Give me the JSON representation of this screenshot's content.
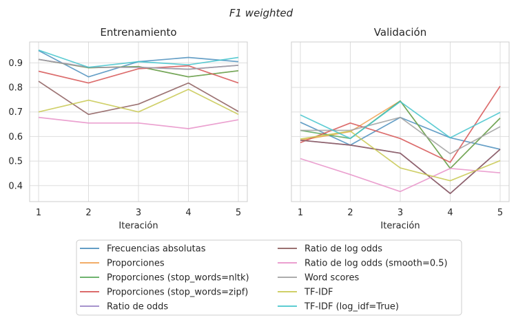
{
  "figure": {
    "suptitle": "F1 weighted"
  },
  "chart_data": [
    {
      "type": "line",
      "title": "Entrenamiento",
      "xlabel": "Iteración",
      "ylabel": "",
      "x": [
        1,
        2,
        3,
        4,
        5
      ],
      "xticks": [
        "1",
        "2",
        "3",
        "4",
        "5"
      ],
      "yticks": [
        "0.4",
        "0.5",
        "0.6",
        "0.7",
        "0.8",
        "0.9"
      ],
      "ylim": [
        0.335,
        0.985
      ],
      "grid": true,
      "series": [
        {
          "name": "Frecuencias absolutas",
          "values": [
            0.95,
            0.843,
            0.905,
            0.922,
            0.905
          ]
        },
        {
          "name": "Proporciones",
          "values": [
            0.914,
            0.88,
            0.885,
            0.843,
            0.868
          ]
        },
        {
          "name": "Proporciones (stop_words=nltk)",
          "values": [
            0.914,
            0.88,
            0.885,
            0.843,
            0.868
          ]
        },
        {
          "name": "Proporciones (stop_words=zipf)",
          "values": [
            0.866,
            0.818,
            0.876,
            0.888,
            0.818
          ]
        },
        {
          "name": "Ratio de odds",
          "values": [
            0.914,
            0.882,
            0.882,
            0.874,
            0.89
          ]
        },
        {
          "name": "Ratio de log odds",
          "values": [
            0.825,
            0.69,
            0.732,
            0.818,
            0.702
          ]
        },
        {
          "name": "Ratio de log odds (smooth=0.5)",
          "values": [
            0.678,
            0.655,
            0.655,
            0.632,
            0.668
          ]
        },
        {
          "name": "Word scores",
          "values": [
            0.914,
            0.882,
            0.882,
            0.874,
            0.89
          ]
        },
        {
          "name": "TF-IDF",
          "values": [
            0.7,
            0.748,
            0.7,
            0.792,
            0.69
          ]
        },
        {
          "name": "TF-IDF (log_idf=True)",
          "values": [
            0.952,
            0.882,
            0.905,
            0.892,
            0.922
          ]
        }
      ]
    },
    {
      "type": "line",
      "title": "Validación",
      "xlabel": "Iteración",
      "ylabel": "",
      "x": [
        1,
        2,
        3,
        4,
        5
      ],
      "xticks": [
        "1",
        "2",
        "3",
        "4",
        "5"
      ],
      "yticks": [],
      "ylim": [
        0.335,
        0.985
      ],
      "grid": true,
      "series": [
        {
          "name": "Frecuencias absolutas",
          "values": [
            0.658,
            0.565,
            0.678,
            0.595,
            0.548
          ]
        },
        {
          "name": "Proporciones",
          "values": [
            0.585,
            0.62,
            0.745,
            0.47,
            0.675
          ]
        },
        {
          "name": "Proporciones (stop_words=nltk)",
          "values": [
            0.625,
            0.592,
            0.745,
            0.47,
            0.675
          ]
        },
        {
          "name": "Proporciones (stop_words=zipf)",
          "values": [
            0.575,
            0.655,
            0.592,
            0.495,
            0.805
          ]
        },
        {
          "name": "Ratio de odds",
          "values": [
            0.585,
            0.565,
            0.532,
            0.368,
            0.548
          ]
        },
        {
          "name": "Ratio de log odds",
          "values": [
            0.585,
            0.565,
            0.532,
            0.368,
            0.548
          ]
        },
        {
          "name": "Ratio de log odds (smooth=0.5)",
          "values": [
            0.51,
            0.445,
            0.376,
            0.47,
            0.452
          ]
        },
        {
          "name": "Word scores",
          "values": [
            0.625,
            0.625,
            0.678,
            0.53,
            0.64
          ]
        },
        {
          "name": "TF-IDF",
          "values": [
            0.59,
            0.622,
            0.472,
            0.42,
            0.502
          ]
        },
        {
          "name": "TF-IDF (log_idf=True)",
          "values": [
            0.688,
            0.592,
            0.742,
            0.595,
            0.698
          ]
        }
      ]
    }
  ],
  "legend": {
    "placement": "bottom-center",
    "entries": [
      {
        "label": "Frecuencias absolutas",
        "color": "#4c8fbd"
      },
      {
        "label": "Proporciones",
        "color": "#f0a050"
      },
      {
        "label": "Proporciones (stop_words=nltk)",
        "color": "#5aa85a"
      },
      {
        "label": "Proporciones (stop_words=zipf)",
        "color": "#d65454"
      },
      {
        "label": "Ratio de odds",
        "color": "#9a82c4"
      },
      {
        "label": "Ratio de log odds",
        "color": "#8c5c5c"
      },
      {
        "label": "Ratio de log odds (smooth=0.5)",
        "color": "#e890c8"
      },
      {
        "label": "Word scores",
        "color": "#a0a0a0"
      },
      {
        "label": "TF-IDF",
        "color": "#c8c850"
      },
      {
        "label": "TF-IDF (log_idf=True)",
        "color": "#44c4cc"
      }
    ]
  }
}
